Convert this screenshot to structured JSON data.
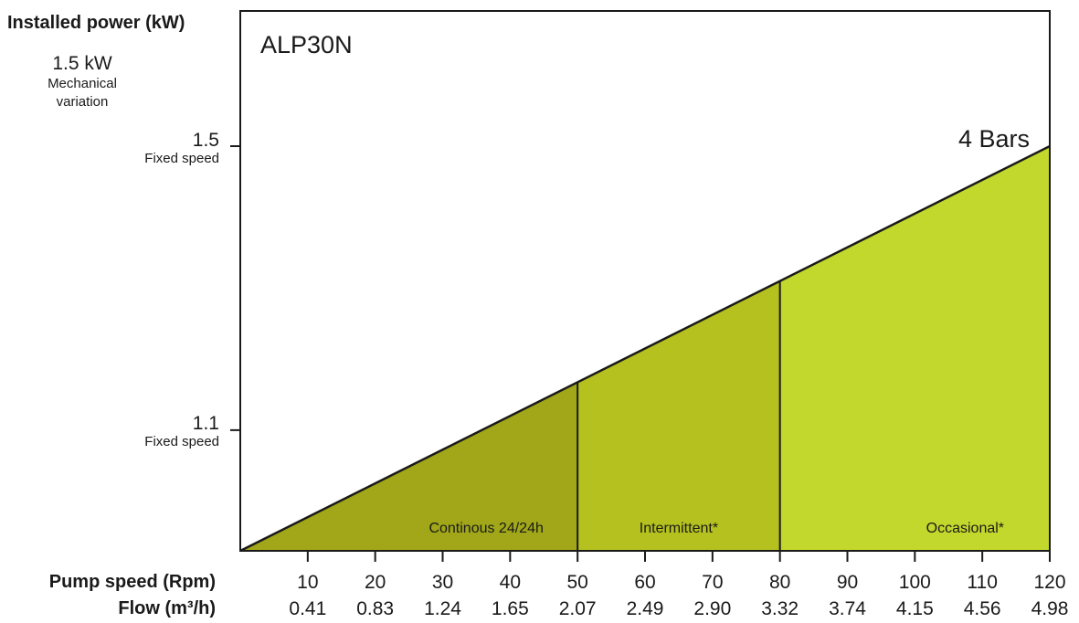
{
  "chart_data": {
    "type": "area",
    "title": "ALP30N",
    "ylabel": "Installed power (kW)",
    "variation": {
      "value": "1.5 kW",
      "label_line1": "Mechanical",
      "label_line2": "variation"
    },
    "y_ticks": [
      {
        "value": 1.5,
        "label": "1.5",
        "sub": "Fixed speed"
      },
      {
        "value": 1.1,
        "label": "1.1",
        "sub": "Fixed speed"
      }
    ],
    "xlabel_rpm": "Pump speed (Rpm)",
    "xlabel_flow": "Flow (m³/h)",
    "x_ticks": [
      10,
      20,
      30,
      40,
      50,
      60,
      70,
      80,
      90,
      100,
      110,
      120
    ],
    "flow_ticks": [
      "0.41",
      "0.83",
      "1.24",
      "1.65",
      "2.07",
      "2.49",
      "2.90",
      "3.32",
      "3.74",
      "4.15",
      "4.56",
      "4.98"
    ],
    "xlim": [
      0,
      120
    ],
    "curve": {
      "name": "4 Bars",
      "points": [
        [
          0,
          0.93
        ],
        [
          120,
          1.5
        ]
      ]
    },
    "ylim": [
      0.93,
      1.5
    ],
    "regions": [
      {
        "label": "Continous 24/24h",
        "from": 0,
        "to": 50,
        "color": "#a1a718"
      },
      {
        "label": "Intermittent*",
        "from": 50,
        "to": 80,
        "color": "#b4c11e"
      },
      {
        "label": "Occasional*",
        "from": 80,
        "to": 120,
        "color": "#c3d82c"
      }
    ],
    "axis_color": "#1a1a1a"
  }
}
